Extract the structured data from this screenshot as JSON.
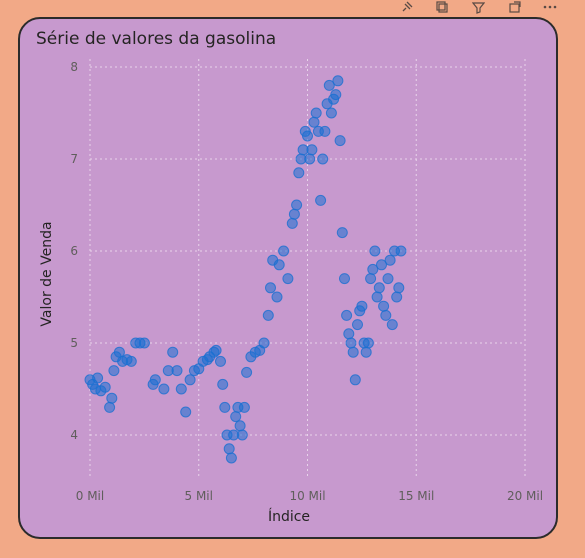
{
  "header_icons": [
    "pin-icon",
    "copy-icon",
    "filter-icon",
    "focus-mode-icon",
    "more-options-icon"
  ],
  "chart_data": {
    "type": "scatter",
    "title": "Série de valores da gasolina",
    "xlabel": "Índice",
    "ylabel": "Valor de Venda",
    "xlim": [
      0,
      20000
    ],
    "ylim": [
      3.6,
      8.1
    ],
    "x_ticks": [
      0,
      5000,
      10000,
      15000,
      20000
    ],
    "x_tick_labels": [
      "0 Mil",
      "5 Mil",
      "10 Mil",
      "15 Mil",
      "20 Mil"
    ],
    "y_ticks": [
      4,
      5,
      6,
      7,
      8
    ],
    "y_tick_labels": [
      "4",
      "5",
      "6",
      "7",
      "8"
    ],
    "grid": true,
    "point_color": "#1A6FD1",
    "series": [
      {
        "points": [
          [
            0,
            4.6
          ],
          [
            120,
            4.55
          ],
          [
            250,
            4.5
          ],
          [
            350,
            4.62
          ],
          [
            500,
            4.48
          ],
          [
            700,
            4.52
          ],
          [
            900,
            4.3
          ],
          [
            1000,
            4.4
          ],
          [
            1100,
            4.7
          ],
          [
            1200,
            4.85
          ],
          [
            1350,
            4.9
          ],
          [
            1500,
            4.8
          ],
          [
            1700,
            4.82
          ],
          [
            1900,
            4.8
          ],
          [
            2100,
            5.0
          ],
          [
            2300,
            5.0
          ],
          [
            2500,
            5.0
          ],
          [
            2900,
            4.55
          ],
          [
            3000,
            4.6
          ],
          [
            3400,
            4.5
          ],
          [
            3600,
            4.7
          ],
          [
            3800,
            4.9
          ],
          [
            4000,
            4.7
          ],
          [
            4200,
            4.5
          ],
          [
            4400,
            4.25
          ],
          [
            4600,
            4.6
          ],
          [
            4800,
            4.7
          ],
          [
            5000,
            4.72
          ],
          [
            5200,
            4.8
          ],
          [
            5400,
            4.82
          ],
          [
            5500,
            4.85
          ],
          [
            5700,
            4.9
          ],
          [
            5800,
            4.92
          ],
          [
            6000,
            4.8
          ],
          [
            6100,
            4.55
          ],
          [
            6200,
            4.3
          ],
          [
            6300,
            4.0
          ],
          [
            6400,
            3.85
          ],
          [
            6500,
            3.75
          ],
          [
            6600,
            4.0
          ],
          [
            6700,
            4.2
          ],
          [
            6800,
            4.3
          ],
          [
            6900,
            4.1
          ],
          [
            7000,
            4.0
          ],
          [
            7100,
            4.3
          ],
          [
            7200,
            4.68
          ],
          [
            7400,
            4.85
          ],
          [
            7600,
            4.9
          ],
          [
            7800,
            4.92
          ],
          [
            8000,
            5.0
          ],
          [
            8200,
            5.3
          ],
          [
            8300,
            5.6
          ],
          [
            8400,
            5.9
          ],
          [
            8600,
            5.5
          ],
          [
            8700,
            5.85
          ],
          [
            8900,
            6.0
          ],
          [
            9100,
            5.7
          ],
          [
            9300,
            6.3
          ],
          [
            9400,
            6.4
          ],
          [
            9500,
            6.5
          ],
          [
            9600,
            6.85
          ],
          [
            9700,
            7.0
          ],
          [
            9800,
            7.1
          ],
          [
            9900,
            7.3
          ],
          [
            10000,
            7.25
          ],
          [
            10100,
            7.0
          ],
          [
            10200,
            7.1
          ],
          [
            10300,
            7.4
          ],
          [
            10400,
            7.5
          ],
          [
            10500,
            7.3
          ],
          [
            10600,
            6.55
          ],
          [
            10700,
            7.0
          ],
          [
            10800,
            7.3
          ],
          [
            10900,
            7.6
          ],
          [
            11000,
            7.8
          ],
          [
            11100,
            7.5
          ],
          [
            11200,
            7.65
          ],
          [
            11300,
            7.7
          ],
          [
            11400,
            7.85
          ],
          [
            11500,
            7.2
          ],
          [
            11600,
            6.2
          ],
          [
            11700,
            5.7
          ],
          [
            11800,
            5.3
          ],
          [
            11900,
            5.1
          ],
          [
            12000,
            5.0
          ],
          [
            12100,
            4.9
          ],
          [
            12200,
            4.6
          ],
          [
            12300,
            5.2
          ],
          [
            12400,
            5.35
          ],
          [
            12500,
            5.4
          ],
          [
            12600,
            5.0
          ],
          [
            12700,
            4.9
          ],
          [
            12800,
            5.0
          ],
          [
            12900,
            5.7
          ],
          [
            13000,
            5.8
          ],
          [
            13100,
            6.0
          ],
          [
            13200,
            5.5
          ],
          [
            13300,
            5.6
          ],
          [
            13400,
            5.85
          ],
          [
            13500,
            5.4
          ],
          [
            13600,
            5.3
          ],
          [
            13700,
            5.7
          ],
          [
            13800,
            5.9
          ],
          [
            13900,
            5.2
          ],
          [
            14000,
            6.0
          ],
          [
            14100,
            5.5
          ],
          [
            14200,
            5.6
          ],
          [
            14300,
            6.0
          ]
        ]
      }
    ]
  }
}
